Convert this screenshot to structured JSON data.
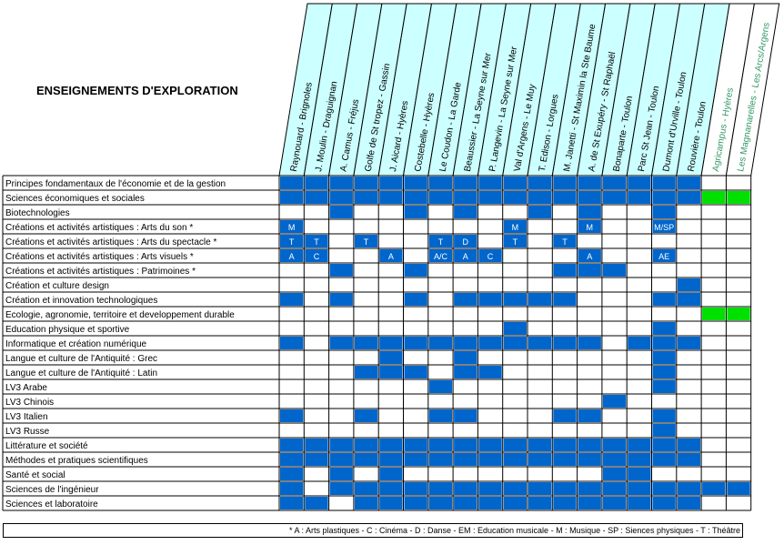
{
  "title": "ENSEIGNEMENTS D'EXPLORATION",
  "schools": [
    {
      "name": "Raynouard - Brignoles",
      "style": "public"
    },
    {
      "name": "J. Moulin - Draguignan",
      "style": "public"
    },
    {
      "name": "A. Camus - Fréjus",
      "style": "public"
    },
    {
      "name": "Golfe de St tropez - Gassin",
      "style": "public"
    },
    {
      "name": "J. Aicard - Hyères",
      "style": "public"
    },
    {
      "name": "Costebelle - Hyères",
      "style": "public"
    },
    {
      "name": "Le Coudon - La Garde",
      "style": "public"
    },
    {
      "name": "Beaussier - La Seyne sur Mer",
      "style": "public"
    },
    {
      "name": "P. Langevin - La Seyne sur Mer",
      "style": "public"
    },
    {
      "name": "Val d'Argens - Le Muy",
      "style": "public"
    },
    {
      "name": "T. Edison - Lorgues",
      "style": "public"
    },
    {
      "name": "M. Janetti - St Maximin la Ste Baume",
      "style": "public"
    },
    {
      "name": "A. de St Exupéry - St Raphaël",
      "style": "public"
    },
    {
      "name": "Bonaparte - Toulon",
      "style": "public"
    },
    {
      "name": "Parc St Jean - Toulon",
      "style": "public"
    },
    {
      "name": "Dumont d'Urville - Toulon",
      "style": "public"
    },
    {
      "name": "Rouvière - Toulon",
      "style": "public"
    },
    {
      "name": "Agricampus - Hyères",
      "style": "agri"
    },
    {
      "name": "Les Magnanarelles - Les Arcs/Argens",
      "style": "agri"
    }
  ],
  "subjects": [
    {
      "name": "Principes fondamentaux de l'économie et de la gestion",
      "cells": "11111011111111111.."
    },
    {
      "name": "Sciences économiques et sociales",
      "cells": "1111111111111111122"
    },
    {
      "name": "Biotechnologies",
      "cells": "..1..1.1..1.1..1..."
    },
    {
      "name": "Créations et activités artistiques : Arts du son *",
      "cells": "M........M..M..X..."
    },
    {
      "name": "Créations et activités artistiques : Arts du spectacle *",
      "cells": "TT.T..TD.T.T.......",
      "keys": {
        "T": "T",
        "D": "D"
      }
    },
    {
      "name": "Créations et activités artistiques : Arts visuels *",
      "cells": "AC..A.BAC...A..Y..."
    },
    {
      "name": "Créations et activités artistiques : Patrimoines *",
      "cells": "..1..1.....111....."
    },
    {
      "name": "Création et culture design",
      "cells": "................1.."
    },
    {
      "name": "Création et innovation technologiques",
      "cells": "1.1..1.11111...11.."
    },
    {
      "name": "Ecologie, agronomie, territoire et developpement durable",
      "cells": ".................22"
    },
    {
      "name": "Education physique et sportive",
      "cells": ".........1.....1..."
    },
    {
      "name": "Informatique et création numérique",
      "cells": "1.11111111111.111.."
    },
    {
      "name": "Langue et culture de l'Antiquité : Grec",
      "cells": "....1..1.......1..."
    },
    {
      "name": "Langue et culture de l'Antiquité : Latin",
      "cells": "...111.11......1..."
    },
    {
      "name": "LV3 Arabe",
      "cells": "......1........1..."
    },
    {
      "name": "LV3 Chinois",
      "cells": ".............1....."
    },
    {
      "name": "LV3 Italien",
      "cells": "1..1..11...11..1..."
    },
    {
      "name": "LV3 Russe",
      "cells": "...............1..."
    },
    {
      "name": "Littérature et société",
      "cells": "11111111111111111.."
    },
    {
      "name": "Méthodes et pratiques scientifiques",
      "cells": "11111111111111111.."
    },
    {
      "name": "Santé et social",
      "cells": "1.1.1........11...."
    },
    {
      "name": "Sciences de l'ingénieur",
      "cells": "1.11111111111111111"
    },
    {
      "name": "Sciences et laboratoire",
      "cells": "11.11111111111111.."
    }
  ],
  "cell_labels": {
    "M": "M",
    "X": "M/SP",
    "T": "T",
    "D": "D",
    "A": "A",
    "C": "C",
    "B": "A/C",
    "Y": "AE"
  },
  "colors": {
    "filled": "#0066cc",
    "agri_filled": "#00e000",
    "header_bg": "#ccffff",
    "agri_text": "#339966",
    "grid": "#000000",
    "cell_text": "#ffffff"
  },
  "footer": "* A : Arts plastiques - C : Cinéma - D : Danse - EM : Education musicale - M : Musique - SP : Siences physiques - T : Théâtre"
}
